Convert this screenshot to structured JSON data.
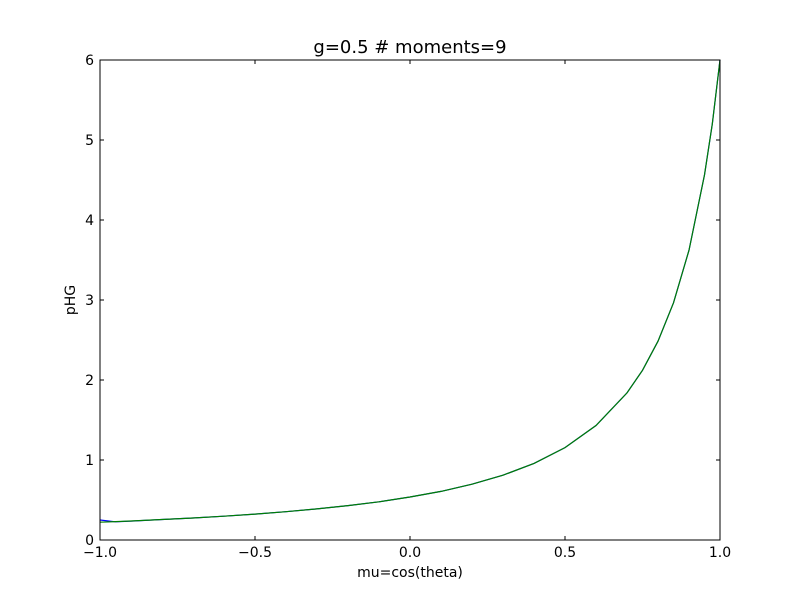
{
  "chart_data": {
    "type": "line",
    "title": "g=0.5    # moments=9",
    "xlabel": "mu=cos(theta)",
    "ylabel": "pHG",
    "xlim": [
      -1.0,
      1.0
    ],
    "ylim": [
      0,
      6
    ],
    "xticks": [
      "−1.0",
      "−0.5",
      "0.0",
      "0.5",
      "1.0"
    ],
    "xtick_values": [
      -1.0,
      -0.5,
      0.0,
      0.5,
      1.0
    ],
    "yticks": [
      "0",
      "1",
      "2",
      "3",
      "4",
      "5",
      "6"
    ],
    "ytick_values": [
      0,
      1,
      2,
      3,
      4,
      5,
      6
    ],
    "grid": false,
    "x": [
      -1.0,
      -0.95,
      -0.9,
      -0.8,
      -0.7,
      -0.6,
      -0.5,
      -0.4,
      -0.3,
      -0.2,
      -0.1,
      0.0,
      0.1,
      0.2,
      0.3,
      0.4,
      0.5,
      0.6,
      0.7,
      0.75,
      0.8,
      0.85,
      0.9,
      0.95,
      0.975,
      1.0
    ],
    "series": [
      {
        "color": "#0000ff",
        "values": [
          0.25,
          0.228,
          0.236,
          0.256,
          0.275,
          0.298,
          0.324,
          0.354,
          0.389,
          0.43,
          0.478,
          0.537,
          0.608,
          0.697,
          0.81,
          0.957,
          1.155,
          1.431,
          1.839,
          2.121,
          2.485,
          2.965,
          3.622,
          4.564,
          5.2,
          6.0
        ]
      },
      {
        "color": "#008000",
        "values": [
          0.222,
          0.23,
          0.238,
          0.256,
          0.275,
          0.298,
          0.324,
          0.354,
          0.389,
          0.43,
          0.478,
          0.537,
          0.608,
          0.697,
          0.81,
          0.957,
          1.155,
          1.431,
          1.839,
          2.121,
          2.485,
          2.965,
          3.622,
          4.564,
          5.201,
          6.0
        ]
      }
    ]
  }
}
